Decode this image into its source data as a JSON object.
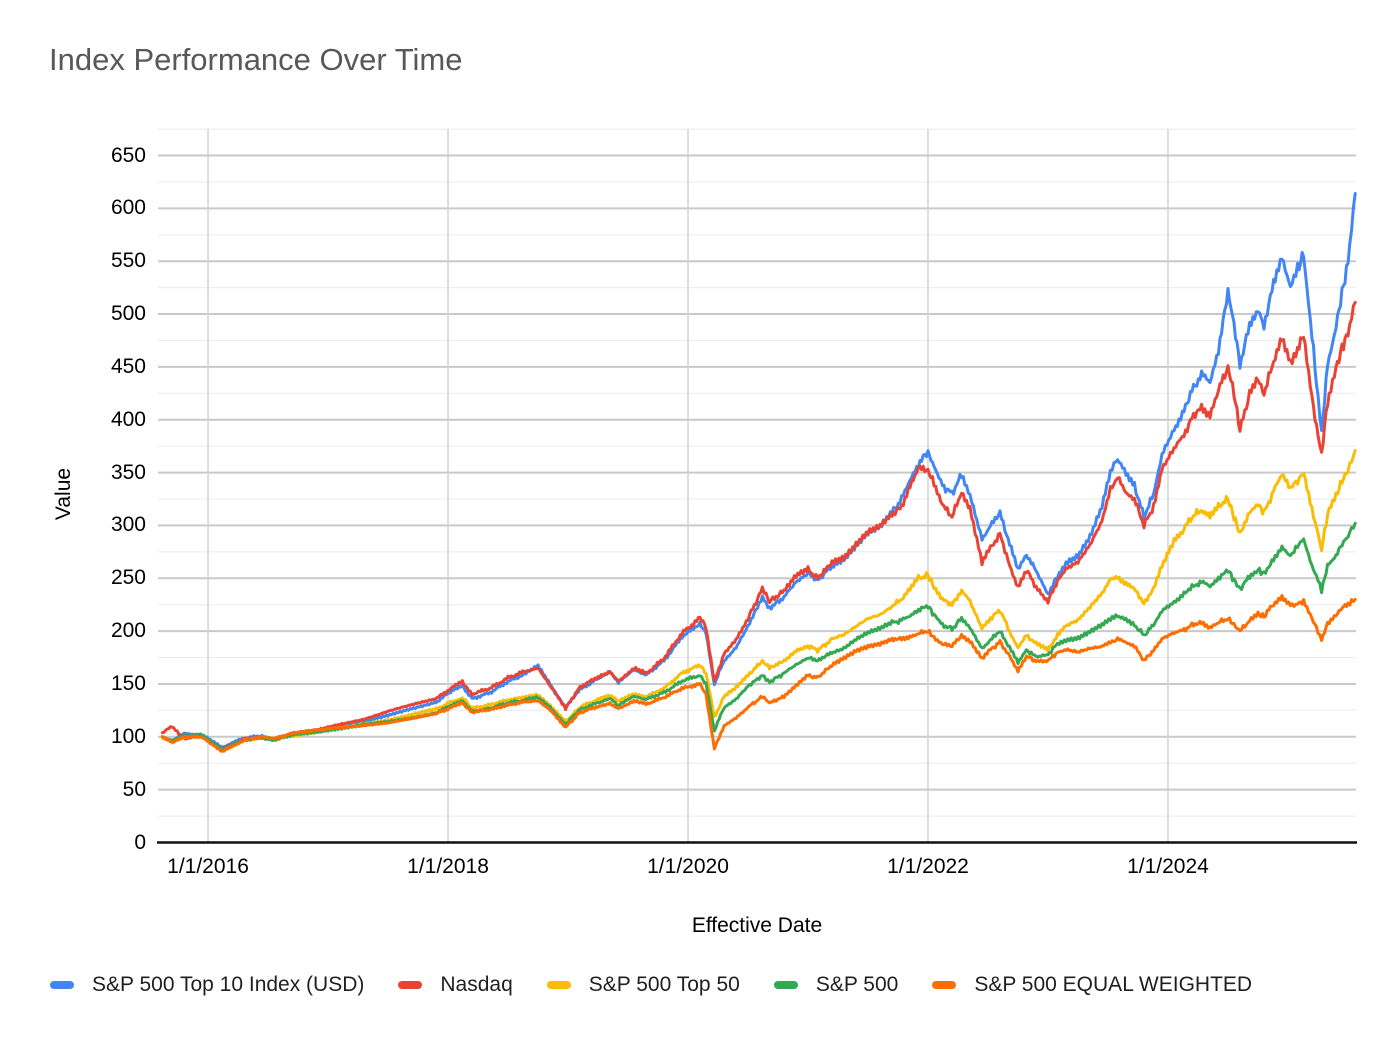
{
  "page": {
    "background": "#ffffff"
  },
  "chart_data": {
    "type": "line",
    "title": "Index Performance Over Time",
    "xlabel": "Effective Date",
    "ylabel": "Value",
    "legend_position": "bottom",
    "grid": {
      "major_color": "#c9c9c9",
      "minor_color": "#ebebeb",
      "vertical_color": "#d2d2d2",
      "axis_color": "#111111",
      "minor_step": 25
    },
    "y_axis": {
      "min": 0,
      "max": 650,
      "ticks": [
        0,
        50,
        100,
        150,
        200,
        250,
        300,
        350,
        400,
        450,
        500,
        550,
        600,
        650
      ]
    },
    "x_axis": {
      "min": 2015.583,
      "max": 2025.567,
      "unit": "decimal_year",
      "ticks": [
        {
          "t": 2016,
          "label": "1/1/2016"
        },
        {
          "t": 2018,
          "label": "1/1/2018"
        },
        {
          "t": 2020,
          "label": "1/1/2020"
        },
        {
          "t": 2022,
          "label": "1/1/2022"
        },
        {
          "t": 2024,
          "label": "1/1/2024"
        }
      ]
    },
    "style": {
      "line_width": 3,
      "noise_amplitude": 0.012
    },
    "x": [
      2015.62,
      2015.7,
      2015.8,
      2015.95,
      2016.12,
      2016.3,
      2016.45,
      2016.55,
      2016.7,
      2016.9,
      2017.1,
      2017.3,
      2017.5,
      2017.7,
      2017.9,
      2018.05,
      2018.12,
      2018.2,
      2018.35,
      2018.5,
      2018.65,
      2018.75,
      2018.85,
      2018.98,
      2019.1,
      2019.25,
      2019.35,
      2019.42,
      2019.55,
      2019.65,
      2019.8,
      2019.95,
      2020.1,
      2020.15,
      2020.22,
      2020.3,
      2020.4,
      2020.5,
      2020.62,
      2020.68,
      2020.8,
      2020.9,
      2021.0,
      2021.08,
      2021.2,
      2021.3,
      2021.4,
      2021.5,
      2021.6,
      2021.7,
      2021.78,
      2021.85,
      2021.92,
      2022.0,
      2022.05,
      2022.12,
      2022.2,
      2022.28,
      2022.35,
      2022.45,
      2022.52,
      2022.6,
      2022.68,
      2022.75,
      2022.82,
      2022.9,
      2023.0,
      2023.08,
      2023.15,
      2023.25,
      2023.35,
      2023.45,
      2023.52,
      2023.58,
      2023.65,
      2023.72,
      2023.8,
      2023.88,
      2023.95,
      2024.05,
      2024.12,
      2024.2,
      2024.28,
      2024.35,
      2024.42,
      2024.5,
      2024.55,
      2024.6,
      2024.68,
      2024.75,
      2024.8,
      2024.88,
      2024.95,
      2025.02,
      2025.08,
      2025.13,
      2025.2,
      2025.25,
      2025.28,
      2025.33,
      2025.4,
      2025.45,
      2025.5,
      2025.53,
      2025.56
    ],
    "series": [
      {
        "name": "S&P 500 Top 10 Index (USD)",
        "color": "#4285F4",
        "values": [
          100,
          96,
          103,
          102,
          90,
          99,
          101,
          98,
          103,
          105,
          110,
          114,
          120,
          127,
          133,
          145,
          148,
          136,
          142,
          152,
          160,
          167,
          150,
          128,
          145,
          155,
          161,
          152,
          163,
          158,
          172,
          195,
          207,
          198,
          150,
          172,
          185,
          205,
          232,
          222,
          232,
          246,
          255,
          248,
          262,
          268,
          280,
          292,
          298,
          312,
          325,
          342,
          358,
          370,
          355,
          338,
          330,
          348,
          330,
          288,
          300,
          312,
          282,
          258,
          272,
          258,
          235,
          252,
          265,
          272,
          290,
          318,
          352,
          362,
          348,
          338,
          308,
          330,
          368,
          392,
          405,
          428,
          442,
          435,
          465,
          522,
          490,
          452,
          490,
          505,
          488,
          530,
          555,
          528,
          542,
          557,
          480,
          420,
          388,
          452,
          488,
          520,
          548,
          580,
          614
        ]
      },
      {
        "name": "Nasdaq",
        "color": "#EA4335",
        "values": [
          104,
          110,
          98,
          101,
          88,
          98,
          100,
          97,
          103,
          106,
          112,
          117,
          124,
          130,
          136,
          148,
          152,
          140,
          146,
          156,
          162,
          165,
          148,
          127,
          147,
          157,
          162,
          153,
          165,
          160,
          174,
          198,
          213,
          204,
          152,
          178,
          192,
          212,
          240,
          228,
          238,
          252,
          258,
          250,
          265,
          270,
          283,
          295,
          300,
          310,
          318,
          338,
          355,
          352,
          340,
          320,
          308,
          332,
          315,
          265,
          278,
          292,
          262,
          242,
          258,
          242,
          228,
          248,
          258,
          265,
          282,
          305,
          335,
          345,
          332,
          325,
          300,
          318,
          352,
          372,
          382,
          402,
          412,
          405,
          428,
          450,
          425,
          390,
          425,
          438,
          425,
          455,
          478,
          452,
          468,
          480,
          420,
          385,
          368,
          418,
          448,
          468,
          482,
          498,
          511
        ]
      },
      {
        "name": "S&P 500 Top 50",
        "color": "#FBBC04",
        "values": [
          99,
          95,
          100,
          100,
          87,
          96,
          99,
          97,
          101,
          104,
          108,
          112,
          116,
          121,
          126,
          134,
          137,
          127,
          130,
          135,
          138,
          140,
          130,
          114,
          128,
          135,
          139,
          133,
          141,
          138,
          146,
          160,
          168,
          160,
          118,
          138,
          146,
          158,
          172,
          165,
          172,
          182,
          186,
          182,
          192,
          196,
          204,
          212,
          216,
          224,
          230,
          240,
          250,
          253,
          242,
          230,
          225,
          238,
          228,
          202,
          212,
          220,
          200,
          184,
          196,
          188,
          182,
          196,
          205,
          210,
          222,
          235,
          248,
          252,
          245,
          240,
          226,
          240,
          262,
          285,
          295,
          308,
          315,
          308,
          318,
          325,
          308,
          292,
          312,
          320,
          312,
          332,
          348,
          335,
          342,
          350,
          315,
          292,
          278,
          310,
          328,
          342,
          352,
          362,
          371
        ]
      },
      {
        "name": "S&P 500",
        "color": "#34A853",
        "values": [
          100,
          96,
          101,
          101,
          88,
          97,
          99,
          97,
          102,
          105,
          108,
          111,
          114,
          118,
          123,
          131,
          134,
          124,
          127,
          132,
          135,
          137,
          128,
          112,
          126,
          132,
          136,
          130,
          138,
          135,
          142,
          153,
          158,
          150,
          106,
          128,
          136,
          148,
          158,
          152,
          160,
          168,
          175,
          172,
          180,
          184,
          192,
          198,
          202,
          208,
          210,
          214,
          220,
          224,
          215,
          206,
          202,
          212,
          204,
          184,
          192,
          200,
          184,
          170,
          182,
          176,
          178,
          188,
          192,
          194,
          200,
          206,
          212,
          214,
          210,
          206,
          196,
          206,
          220,
          228,
          234,
          242,
          246,
          242,
          250,
          258,
          248,
          240,
          252,
          258,
          254,
          268,
          280,
          272,
          280,
          288,
          262,
          248,
          238,
          262,
          272,
          282,
          290,
          296,
          302
        ]
      },
      {
        "name": "S&P 500 EQUAL WEIGHTED",
        "color": "#FF6D01",
        "values": [
          100,
          95,
          100,
          100,
          86,
          97,
          100,
          98,
          103,
          106,
          109,
          111,
          113,
          117,
          122,
          129,
          132,
          123,
          126,
          130,
          133,
          134,
          125,
          109,
          123,
          129,
          132,
          127,
          134,
          131,
          137,
          146,
          150,
          140,
          89,
          110,
          118,
          128,
          138,
          132,
          138,
          148,
          158,
          156,
          168,
          175,
          182,
          186,
          188,
          192,
          193,
          195,
          198,
          200,
          194,
          188,
          186,
          196,
          190,
          174,
          182,
          190,
          176,
          163,
          176,
          172,
          172,
          180,
          182,
          180,
          184,
          186,
          190,
          192,
          190,
          186,
          172,
          182,
          192,
          198,
          200,
          206,
          208,
          204,
          208,
          212,
          206,
          200,
          210,
          216,
          214,
          226,
          232,
          224,
          226,
          228,
          212,
          200,
          191,
          208,
          215,
          222,
          226,
          228,
          230
        ]
      }
    ]
  }
}
